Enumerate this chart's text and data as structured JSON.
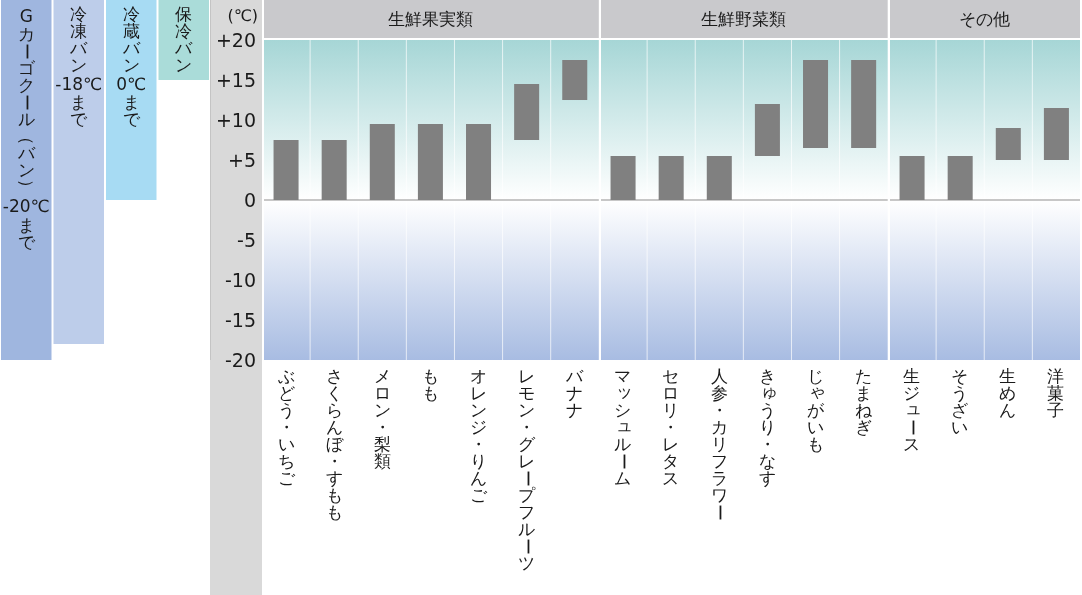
{
  "chart_data": [
    {
      "type": "bar",
      "ylabel": "(℃)",
      "categories": [
        "Gカーゴクール（バン）-20℃まで",
        "冷凍バン-18℃まで",
        "冷蔵バン0℃まで",
        "保冷バン"
      ],
      "base": [
        -20,
        -18,
        0,
        15
      ],
      "values": [
        45,
        43,
        25,
        10
      ],
      "colors": [
        "#9fb6df",
        "#bdcdea",
        "#a7dbf3",
        "#aadcd9"
      ],
      "ylim": [
        -20,
        25
      ],
      "yticks": [
        {
          "value": 20,
          "label": "+20"
        },
        {
          "value": 15,
          "label": "+15"
        },
        {
          "value": 10,
          "label": "+10"
        },
        {
          "value": 5,
          "label": "+5"
        },
        0,
        -5,
        -10,
        -15,
        -20
      ]
    },
    {
      "type": "bar",
      "title": "生鮮果実類",
      "categories": [
        "ぶどう・いちご",
        "さくらんぼ・すもも",
        "メロン・梨類",
        "もも",
        "オレンジ・りんご",
        "レモン・グレープフルーツ",
        "バナナ"
      ],
      "base": [
        0,
        0,
        0,
        0,
        0,
        7.5,
        12.5
      ],
      "values": [
        7.5,
        7.5,
        9.5,
        9.5,
        9.5,
        7,
        5
      ],
      "color": "#808080",
      "ylim": [
        -20,
        25
      ],
      "tick_labels": "x",
      "grid": "x",
      "bands": [
        {
          "axis": "y",
          "from": 0,
          "to": 20,
          "color": "#a6d6d6"
        },
        {
          "axis": "y",
          "from": -20,
          "to": 0,
          "color": "#a8bce2"
        }
      ],
      "ref_lines": [
        {
          "axis": "y",
          "value": 0,
          "color": "#b4b4b4"
        }
      ]
    },
    {
      "type": "bar",
      "title": "生鮮野菜類",
      "categories": [
        "マッシュルーム",
        "セロリ・レタス",
        "人参・カリフラワー",
        "きゅうり・なす",
        "じゃがいも",
        "たまねぎ"
      ],
      "base": [
        0,
        0,
        0,
        5.5,
        6.5,
        6.5
      ],
      "values": [
        5.5,
        5.5,
        5.5,
        6.5,
        11,
        11
      ],
      "color": "#808080",
      "ylim": [
        -20,
        25
      ],
      "tick_labels": "x",
      "grid": "x",
      "bands": [
        {
          "axis": "y",
          "from": 0,
          "to": 20,
          "color": "#a6d6d6"
        },
        {
          "axis": "y",
          "from": -20,
          "to": 0,
          "color": "#a8bce2"
        }
      ],
      "ref_lines": [
        {
          "axis": "y",
          "value": 0,
          "color": "#b4b4b4"
        }
      ]
    },
    {
      "type": "bar",
      "title": "その他",
      "categories": [
        "生ジュース",
        "そうざい",
        "生めん",
        "洋菓子"
      ],
      "base": [
        0,
        0,
        5,
        5
      ],
      "values": [
        5.5,
        5.5,
        4,
        6.5
      ],
      "color": "#808080",
      "ylim": [
        -20,
        25
      ],
      "tick_labels": "x",
      "grid": "x",
      "bands": [
        {
          "axis": "y",
          "from": 0,
          "to": 20,
          "color": "#a6d6d6"
        },
        {
          "axis": "y",
          "from": -20,
          "to": 0,
          "color": "#a8bce2"
        }
      ],
      "ref_lines": [
        {
          "axis": "y",
          "value": 0,
          "color": "#b4b4b4"
        }
      ]
    }
  ]
}
